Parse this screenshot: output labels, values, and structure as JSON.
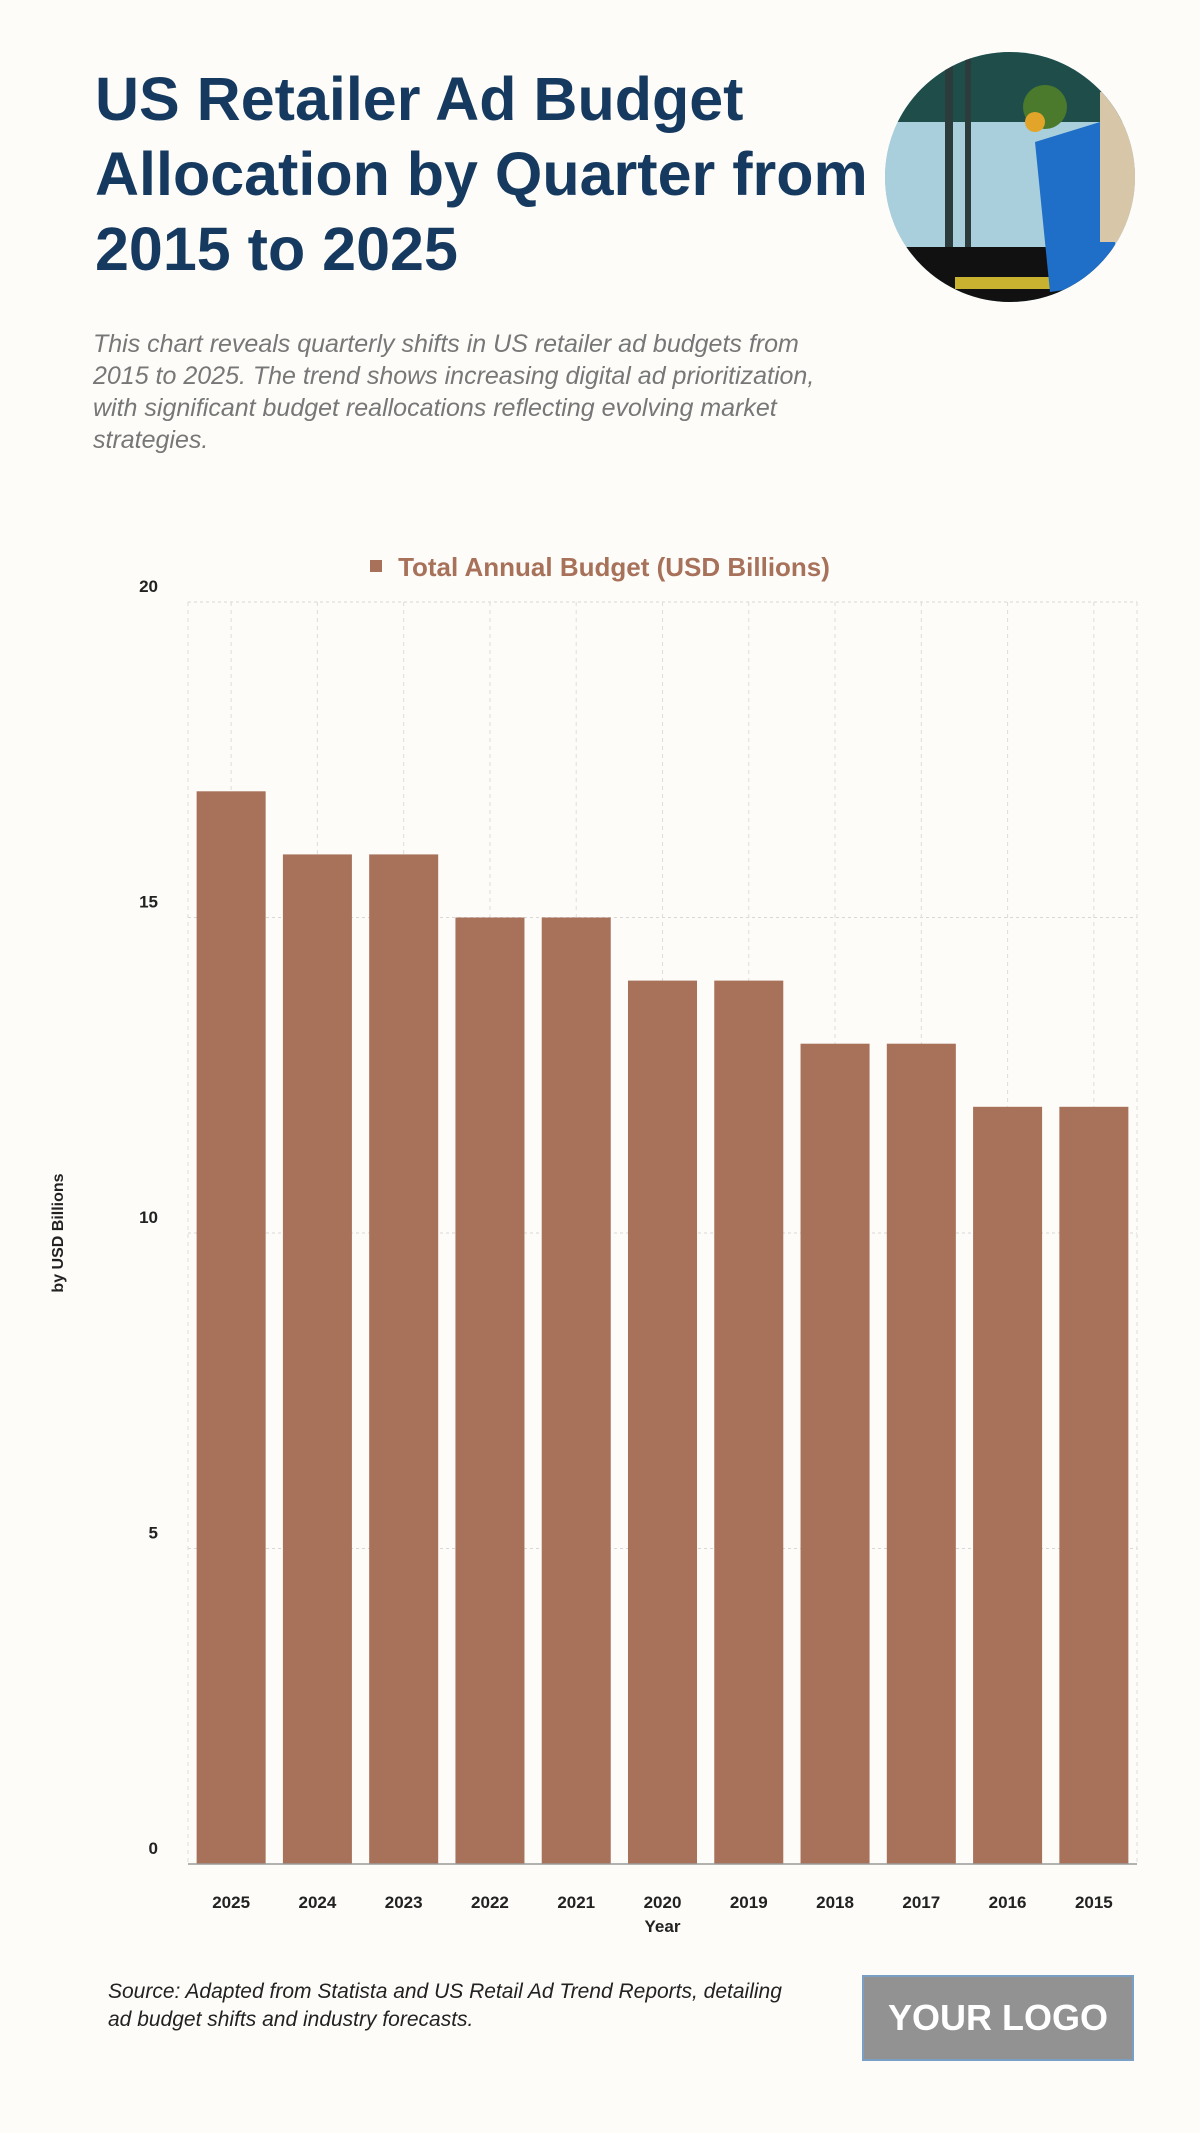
{
  "title": "US Retailer Ad Budget Allocation by Quarter from 2015 to 2025",
  "subtitle": "This chart reveals quarterly shifts in US retailer ad budgets from 2015 to 2025. The trend shows increasing digital ad prioritization, with significant budget reallocations reflecting evolving market strategies.",
  "source": "Source: Adapted from Statista and US Retail Ad Trend Reports, detailing ad budget shifts and industry forecasts.",
  "logo": "YOUR LOGO",
  "photo_icon": "shopping-bag-photo",
  "colors": {
    "bar": "#A8715A",
    "title": "#163A5F",
    "background": "#FDFCF9"
  },
  "chart_data": {
    "type": "bar",
    "categories": [
      "2025",
      "2024",
      "2023",
      "2022",
      "2021",
      "2020",
      "2019",
      "2018",
      "2017",
      "2016",
      "2015"
    ],
    "series": [
      {
        "name": "Total Annual Budget (USD Billions)",
        "values": [
          17,
          16,
          16,
          15,
          15,
          14,
          14,
          13,
          13,
          12,
          12
        ]
      }
    ],
    "xlabel": "Year",
    "ylabel": "by USD Billions",
    "ylim": [
      0,
      20
    ],
    "yticks": [
      0,
      5,
      10,
      15,
      20
    ],
    "grid": true,
    "legend": "top-center"
  }
}
